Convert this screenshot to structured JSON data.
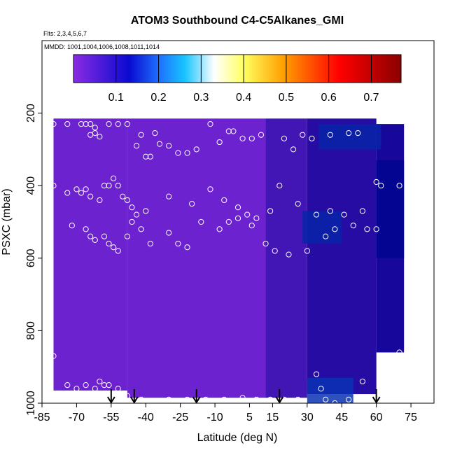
{
  "chart_data": {
    "type": "heatmap",
    "title": "ATOM3 Southbound C4-C5Alkanes_GMI",
    "subtitle_flights": "Flts: 2,3,4,5,6,7",
    "subtitle_dates": "MMDD: 1001,1004,1006,1008,1011,1014",
    "xlabel": "Latitude (deg N)",
    "ylabel": "PSXC (mbar)",
    "xlim": [
      -85,
      85
    ],
    "ylim": [
      1000,
      0
    ],
    "x_ticks": [
      -85,
      -70,
      -55,
      -40,
      -25,
      -10,
      5,
      15,
      30,
      45,
      60,
      75
    ],
    "y_ticks": [
      200,
      400,
      600,
      800,
      1000
    ],
    "colorbar": {
      "range": [
        0,
        0.77
      ],
      "ticks": [
        0.1,
        0.2,
        0.3,
        0.4,
        0.5,
        0.6,
        0.7
      ],
      "colors": [
        "#8a2be2",
        "#00008b",
        "#1e90ff",
        "#00bfff",
        "#ffffff",
        "#ffff00",
        "#ffa500",
        "#ff0000",
        "#8b0000"
      ]
    },
    "curtain_bands": [
      {
        "lat": [
          -80,
          -48
        ],
        "p": [
          215,
          965
        ],
        "value": 0.02
      },
      {
        "lat": [
          -48,
          12
        ],
        "p": [
          215,
          985
        ],
        "value": 0.02
      },
      {
        "lat": [
          12,
          30
        ],
        "p": [
          215,
          985
        ],
        "value": 0.05
      },
      {
        "lat": [
          30,
          60
        ],
        "p": [
          215,
          975
        ],
        "value": 0.07
      },
      {
        "lat": [
          60,
          72
        ],
        "p": [
          230,
          860
        ],
        "value": 0.08
      }
    ],
    "enhancements": [
      {
        "lat": [
          35,
          62
        ],
        "p": [
          230,
          300
        ],
        "value": 0.12
      },
      {
        "lat": [
          28,
          45
        ],
        "p": [
          470,
          560
        ],
        "value": 0.12
      },
      {
        "lat": [
          30,
          50
        ],
        "p": [
          930,
          1000
        ],
        "value": 0.13
      },
      {
        "lat": [
          60,
          72
        ],
        "p": [
          330,
          600
        ],
        "value": 0.1
      }
    ],
    "flight_arrows_lat": [
      -55,
      -45,
      -18,
      18,
      60
    ],
    "observations": [
      [
        -80,
        230
      ],
      [
        -74,
        230
      ],
      [
        -68,
        230
      ],
      [
        -66,
        230
      ],
      [
        -64,
        230
      ],
      [
        -62,
        240
      ],
      [
        -64,
        260
      ],
      [
        -62,
        255
      ],
      [
        -60,
        265
      ],
      [
        -58,
        190
      ],
      [
        -56,
        230
      ],
      [
        -52,
        230
      ],
      [
        -50,
        200
      ],
      [
        -48,
        230
      ],
      [
        -46,
        190
      ],
      [
        -44,
        290
      ],
      [
        -42,
        260
      ],
      [
        -40,
        320
      ],
      [
        -38,
        320
      ],
      [
        -36,
        255
      ],
      [
        -34,
        285
      ],
      [
        -30,
        290
      ],
      [
        -26,
        310
      ],
      [
        -22,
        310
      ],
      [
        -18,
        300
      ],
      [
        -16,
        200
      ],
      [
        -12,
        230
      ],
      [
        -8,
        280
      ],
      [
        -4,
        250
      ],
      [
        -2,
        250
      ],
      [
        2,
        270
      ],
      [
        6,
        270
      ],
      [
        10,
        260
      ],
      [
        14,
        200
      ],
      [
        20,
        270
      ],
      [
        24,
        300
      ],
      [
        28,
        260
      ],
      [
        32,
        270
      ],
      [
        40,
        260
      ],
      [
        48,
        255
      ],
      [
        52,
        255
      ],
      [
        60,
        390
      ],
      [
        64,
        200
      ],
      [
        66,
        200
      ],
      [
        68,
        200
      ],
      [
        -82,
        380
      ],
      [
        -80,
        400
      ],
      [
        -74,
        420
      ],
      [
        -70,
        410
      ],
      [
        -68,
        420
      ],
      [
        -66,
        410
      ],
      [
        -64,
        430
      ],
      [
        -60,
        440
      ],
      [
        -58,
        400
      ],
      [
        -56,
        400
      ],
      [
        -54,
        380
      ],
      [
        -52,
        400
      ],
      [
        -50,
        430
      ],
      [
        -48,
        440
      ],
      [
        -46,
        460
      ],
      [
        -44,
        480
      ],
      [
        -40,
        470
      ],
      [
        -30,
        430
      ],
      [
        -20,
        450
      ],
      [
        -12,
        410
      ],
      [
        -6,
        440
      ],
      [
        0,
        460
      ],
      [
        4,
        480
      ],
      [
        8,
        490
      ],
      [
        14,
        470
      ],
      [
        18,
        400
      ],
      [
        26,
        450
      ],
      [
        34,
        480
      ],
      [
        40,
        470
      ],
      [
        46,
        480
      ],
      [
        54,
        470
      ],
      [
        62,
        400
      ],
      [
        70,
        400
      ],
      [
        -72,
        510
      ],
      [
        -66,
        520
      ],
      [
        -64,
        540
      ],
      [
        -62,
        550
      ],
      [
        -58,
        540
      ],
      [
        -56,
        560
      ],
      [
        -54,
        570
      ],
      [
        -52,
        580
      ],
      [
        -48,
        540
      ],
      [
        -46,
        500
      ],
      [
        -42,
        520
      ],
      [
        -38,
        560
      ],
      [
        -30,
        530
      ],
      [
        -26,
        560
      ],
      [
        -22,
        570
      ],
      [
        -16,
        500
      ],
      [
        -8,
        520
      ],
      [
        -4,
        500
      ],
      [
        0,
        490
      ],
      [
        6,
        510
      ],
      [
        12,
        560
      ],
      [
        16,
        580
      ],
      [
        22,
        590
      ],
      [
        30,
        580
      ],
      [
        38,
        540
      ],
      [
        42,
        520
      ],
      [
        50,
        510
      ],
      [
        56,
        520
      ],
      [
        60,
        520
      ],
      [
        -80,
        870
      ],
      [
        -74,
        950
      ],
      [
        -70,
        960
      ],
      [
        -66,
        950
      ],
      [
        -62,
        960
      ],
      [
        -60,
        940
      ],
      [
        -58,
        950
      ],
      [
        -56,
        950
      ],
      [
        -52,
        960
      ],
      [
        -48,
        980
      ],
      [
        -42,
        990
      ],
      [
        -38,
        1000
      ],
      [
        -30,
        990
      ],
      [
        -22,
        990
      ],
      [
        -14,
        990
      ],
      [
        -6,
        990
      ],
      [
        2,
        985
      ],
      [
        8,
        990
      ],
      [
        14,
        990
      ],
      [
        20,
        990
      ],
      [
        26,
        990
      ],
      [
        34,
        920
      ],
      [
        36,
        960
      ],
      [
        38,
        990
      ],
      [
        42,
        1000
      ],
      [
        48,
        990
      ],
      [
        54,
        940
      ],
      [
        70,
        860
      ]
    ]
  }
}
